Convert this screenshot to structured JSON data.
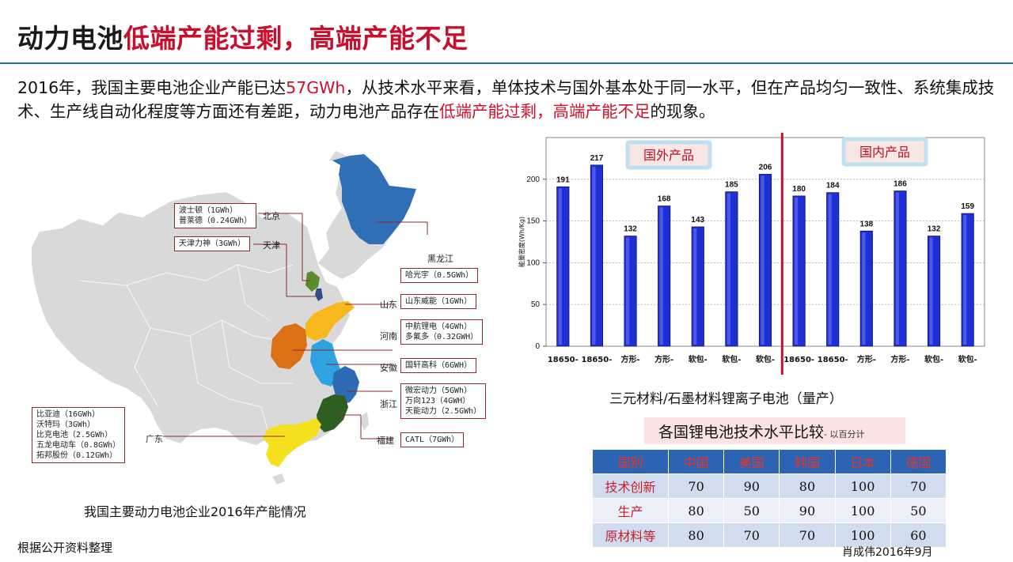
{
  "title": {
    "part1": "动力电池",
    "part2": "低端产能过剩，高端产能不足"
  },
  "intro": {
    "p1": "2016年，我国主要电池企业产能已达",
    "p1_red": "57GWh",
    "p2": "，从技术水平来看，单体技术与国外基本处于同一水平，但在产品均匀一致性、系统集成技术、生产线自动化程度等方面还有差距，动力电池产品存在",
    "p2_red": "低端产能过剩，高端产能不足",
    "p3": "的现象。"
  },
  "map": {
    "caption": "我国主要动力电池企业2016年产能情况",
    "provinces": {
      "beijing": "北京",
      "tianjin": "天津",
      "heilongjiang": "黑龙江",
      "shandong": "山东",
      "henan": "河南",
      "anhui": "安徽",
      "zhejiang": "浙江",
      "fujian": "福建",
      "guangdong": "广东"
    },
    "boxes": {
      "beijing": [
        "波士顿（1GWh）",
        "普莱德（0.24GWh）"
      ],
      "tianjin": [
        "天津力神（3GWh）"
      ],
      "heilongjiang": [
        "哈光宇（0.5GWh）"
      ],
      "shandong": [
        "山东威能（1GWh）"
      ],
      "henan": [
        "中航锂电（4GWh）",
        "多氟多（0.32GWH）"
      ],
      "anhui": [
        "国轩高科（6GWH）"
      ],
      "zhejiang": [
        "微宏动力（5GWh）",
        "万向123（4GWH）",
        "天能动力（2.5GWh）"
      ],
      "fujian": [
        "CATL（7GWh）"
      ],
      "guangdong": [
        "比亚迪（16GWh）",
        "沃特玛（3GWh）",
        "比克电池（2.5GWh）",
        "五龙电动车（0.8GWh）",
        "拓邦股份（0.12GWh）"
      ]
    },
    "colors": {
      "base": "#d9d9d9",
      "heilongjiang": "#2f6fb5",
      "beijing": "#5b8b2a",
      "tianjin": "#2a4f8a",
      "shandong": "#f6b81c",
      "henan": "#d97014",
      "anhui": "#2fa3e0",
      "zhejiang": "#2c6cb4",
      "fujian": "#2f5e22",
      "guangdong": "#f4e01c"
    }
  },
  "chart_data": {
    "type": "bar",
    "title": "三元材料/石墨材料锂离子电池（量产）",
    "ylabel": "能量密度(Wh/Kg)",
    "xlabel": "",
    "ylim": [
      0,
      250
    ],
    "yticks": [
      0,
      50,
      100,
      150,
      200
    ],
    "categories": [
      "18650-",
      "18650-",
      "方形-",
      "方形-",
      "软包-",
      "软包-",
      "软包-",
      "18650-",
      "18650-",
      "方形-",
      "方形-",
      "软包-",
      "软包-"
    ],
    "values": [
      191,
      217,
      132,
      168,
      143,
      185,
      206,
      180,
      184,
      138,
      186,
      132,
      159
    ],
    "groups": [
      {
        "name": "国外产品",
        "count": 7
      },
      {
        "name": "国内产品",
        "count": 6
      }
    ],
    "grid": true,
    "bar_color": "#1f2fd6",
    "divider_color": "#c8102e"
  },
  "comparison": {
    "title": "各国锂电池技术水平比较",
    "title_note": "- 以百分计",
    "headers": [
      "国别",
      "中国",
      "美国",
      "韩国",
      "日本",
      "德国"
    ],
    "rows": [
      {
        "label": "技术创新",
        "values": [
          "70",
          "90",
          "80",
          "100",
          "70"
        ]
      },
      {
        "label": "生产",
        "values": [
          "80",
          "50",
          "90",
          "100",
          "50"
        ]
      },
      {
        "label": "原材料等",
        "values": [
          "80",
          "70",
          "70",
          "100",
          "60"
        ]
      }
    ]
  },
  "footer": {
    "source": "根据公开资料整理",
    "author": "肖成伟2016年9月"
  }
}
